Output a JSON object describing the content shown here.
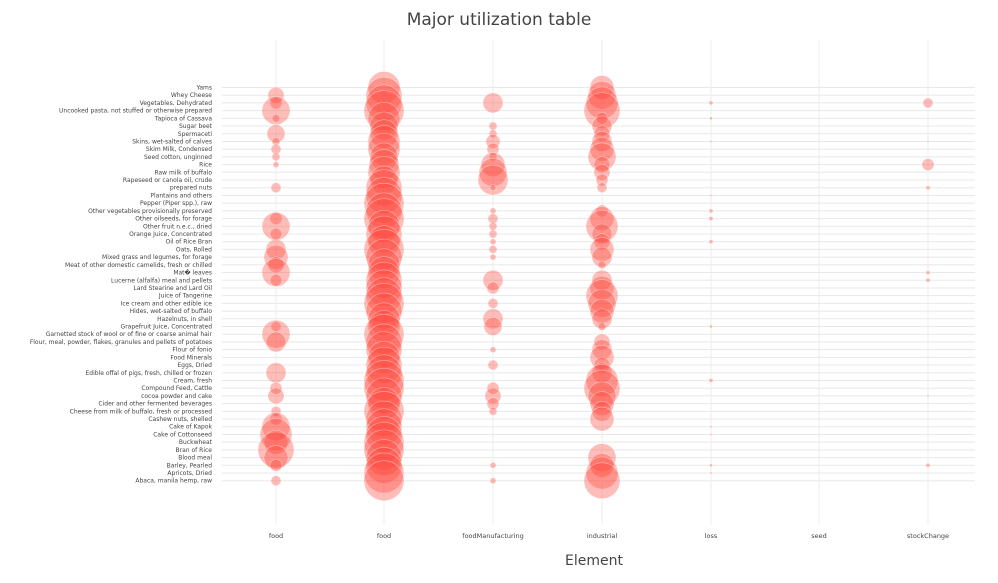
{
  "chart_data": {
    "type": "scatter",
    "title": "Major utilization table",
    "xlabel": "Element",
    "ylabel": "",
    "categories": [
      "food",
      "food",
      "foodManufacturing",
      "industrial",
      "loss",
      "seed",
      "stockChange"
    ],
    "y_categories": [
      "Yams",
      "Whey Cheese",
      "Vegetables, Dehydrated",
      "Uncooked pasta, not stuffed or otherwise prepared",
      "Tapioca of Cassava",
      "Sugar beet",
      "Spermaceti",
      "Skins, wet-salted of calves",
      "Skim Milk, Condensed",
      "Seed cotton, unginned",
      "Rice",
      "Raw milk of buffalo",
      "Rapeseed or canola oil, crude",
      "prepared nuts",
      "Plantains and others",
      "Pepper (Piper spp.), raw",
      "Other vegetables provisionally preserved",
      "Other oilseeds, for forage",
      "Other fruit n.e.c., dried",
      "Orange Juice, Concentrated",
      "Oil of Rice Bran",
      "Oats, Rolled",
      "Mixed grass and legumes, for forage",
      "Meat of other domestic camelids, fresh or chilled",
      "Mat� leaves",
      "Lucerne (alfalfa) meal and pellets",
      "Lard Stearine and Lard Oil",
      "Juice of Tangerine",
      "Ice cream and other edible ice",
      "Hides, wet-salted of buffalo",
      "Hazelnuts, in shell",
      "Grapefruit Juice, Concentrated",
      "Garnetted stock of wool or of fine or coarse animal hair",
      "Flour, meal, powder, flakes, granules and pellets of potatoes",
      "Flour of fonio",
      "Food Minerals",
      "Eggs, Dried",
      "Edible offal of pigs, fresh, chilled or frozen",
      "Cream, fresh",
      "Compound Feed, Cattle",
      "cocoa powder and cake",
      "Cider and other fermented beverages",
      "Cheese from milk of buffalo, fresh or processed",
      "Cashew nuts, shelled",
      "Cake of Kapok",
      "Cake of Cottonseed",
      "Buckwheat",
      "Bran of Rice",
      "Blood meal",
      "Barley, Pearled",
      "Apricots, Dried",
      "Abaca, manila hemp, raw"
    ],
    "grid": true,
    "legend": "none",
    "marker_color": "#ff4136",
    "marker_opacity": 0.35,
    "series": [
      {
        "x_index": 0,
        "points": [
          [
            1,
            8
          ],
          [
            2,
            6
          ],
          [
            3,
            14
          ],
          [
            4,
            4
          ],
          [
            6,
            9
          ],
          [
            7,
            4
          ],
          [
            8,
            5
          ],
          [
            9,
            4
          ],
          [
            10,
            3
          ],
          [
            13,
            5
          ],
          [
            17,
            6
          ],
          [
            18,
            14
          ],
          [
            19,
            6
          ],
          [
            21,
            10
          ],
          [
            22,
            12
          ],
          [
            23,
            8
          ],
          [
            24,
            14
          ],
          [
            25,
            6
          ],
          [
            31,
            5
          ],
          [
            32,
            14
          ],
          [
            33,
            10
          ],
          [
            37,
            10
          ],
          [
            39,
            6
          ],
          [
            40,
            8
          ],
          [
            42,
            5
          ],
          [
            43,
            6
          ],
          [
            44,
            14
          ],
          [
            45,
            16
          ],
          [
            46,
            12
          ],
          [
            47,
            18
          ],
          [
            48,
            12
          ],
          [
            49,
            6
          ],
          [
            51,
            5
          ]
        ]
      },
      {
        "x_index": 1,
        "points": [
          [
            0,
            16
          ],
          [
            1,
            18
          ],
          [
            2,
            18
          ],
          [
            3,
            20
          ],
          [
            4,
            16
          ],
          [
            5,
            14
          ],
          [
            6,
            14
          ],
          [
            7,
            16
          ],
          [
            8,
            16
          ],
          [
            9,
            14
          ],
          [
            10,
            15
          ],
          [
            11,
            16
          ],
          [
            12,
            14
          ],
          [
            13,
            18
          ],
          [
            14,
            18
          ],
          [
            15,
            20
          ],
          [
            16,
            18
          ],
          [
            17,
            20
          ],
          [
            18,
            16
          ],
          [
            19,
            18
          ],
          [
            20,
            16
          ],
          [
            21,
            20
          ],
          [
            22,
            18
          ],
          [
            23,
            16
          ],
          [
            24,
            16
          ],
          [
            25,
            18
          ],
          [
            26,
            18
          ],
          [
            27,
            18
          ],
          [
            28,
            20
          ],
          [
            29,
            18
          ],
          [
            30,
            16
          ],
          [
            31,
            16
          ],
          [
            32,
            20
          ],
          [
            33,
            18
          ],
          [
            34,
            18
          ],
          [
            35,
            16
          ],
          [
            36,
            18
          ],
          [
            37,
            18
          ],
          [
            38,
            20
          ],
          [
            39,
            20
          ],
          [
            40,
            18
          ],
          [
            41,
            16
          ],
          [
            42,
            20
          ],
          [
            43,
            18
          ],
          [
            44,
            18
          ],
          [
            45,
            18
          ],
          [
            46,
            20
          ],
          [
            47,
            20
          ],
          [
            48,
            18
          ],
          [
            49,
            18
          ],
          [
            50,
            20
          ],
          [
            51,
            20
          ]
        ]
      },
      {
        "x_index": 2,
        "points": [
          [
            2,
            10
          ],
          [
            5,
            4
          ],
          [
            6,
            4
          ],
          [
            7,
            7
          ],
          [
            8,
            6
          ],
          [
            9,
            4
          ],
          [
            10,
            12
          ],
          [
            11,
            14
          ],
          [
            12,
            15
          ],
          [
            13,
            3
          ],
          [
            16,
            3
          ],
          [
            17,
            5
          ],
          [
            18,
            4
          ],
          [
            19,
            4
          ],
          [
            20,
            3
          ],
          [
            21,
            4
          ],
          [
            22,
            3
          ],
          [
            25,
            10
          ],
          [
            26,
            6
          ],
          [
            28,
            5
          ],
          [
            30,
            10
          ],
          [
            31,
            9
          ],
          [
            34,
            3
          ],
          [
            36,
            5
          ],
          [
            39,
            6
          ],
          [
            40,
            8
          ],
          [
            41,
            6
          ],
          [
            42,
            4
          ],
          [
            49,
            3
          ],
          [
            51,
            3
          ]
        ]
      },
      {
        "x_index": 3,
        "points": [
          [
            0,
            12
          ],
          [
            1,
            14
          ],
          [
            2,
            16
          ],
          [
            3,
            18
          ],
          [
            4,
            6
          ],
          [
            5,
            10
          ],
          [
            6,
            8
          ],
          [
            7,
            10
          ],
          [
            8,
            12
          ],
          [
            9,
            14
          ],
          [
            10,
            8
          ],
          [
            11,
            8
          ],
          [
            12,
            6
          ],
          [
            13,
            5
          ],
          [
            16,
            6
          ],
          [
            17,
            12
          ],
          [
            18,
            16
          ],
          [
            19,
            10
          ],
          [
            20,
            8
          ],
          [
            21,
            12
          ],
          [
            22,
            10
          ],
          [
            23,
            4
          ],
          [
            25,
            10
          ],
          [
            26,
            12
          ],
          [
            27,
            16
          ],
          [
            28,
            14
          ],
          [
            29,
            12
          ],
          [
            30,
            10
          ],
          [
            31,
            4
          ],
          [
            33,
            8
          ],
          [
            34,
            10
          ],
          [
            35,
            12
          ],
          [
            36,
            8
          ],
          [
            37,
            10
          ],
          [
            38,
            16
          ],
          [
            39,
            18
          ],
          [
            40,
            14
          ],
          [
            41,
            12
          ],
          [
            42,
            10
          ],
          [
            43,
            12
          ],
          [
            48,
            14
          ],
          [
            49,
            12
          ],
          [
            50,
            16
          ],
          [
            51,
            18
          ]
        ]
      },
      {
        "x_index": 4,
        "points": [
          [
            2,
            2
          ],
          [
            4,
            1.5
          ],
          [
            7,
            1
          ],
          [
            14,
            1
          ],
          [
            16,
            2
          ],
          [
            17,
            2
          ],
          [
            20,
            2
          ],
          [
            31,
            1.5
          ],
          [
            38,
            2
          ],
          [
            44,
            1
          ],
          [
            45,
            1
          ],
          [
            49,
            1.5
          ],
          [
            50,
            1
          ]
        ]
      },
      {
        "x_index": 5,
        "points": []
      },
      {
        "x_index": 6,
        "points": [
          [
            2,
            5
          ],
          [
            7,
            1
          ],
          [
            10,
            6
          ],
          [
            13,
            2
          ],
          [
            24,
            2
          ],
          [
            25,
            2
          ],
          [
            40,
            1
          ],
          [
            49,
            2
          ]
        ]
      }
    ]
  }
}
